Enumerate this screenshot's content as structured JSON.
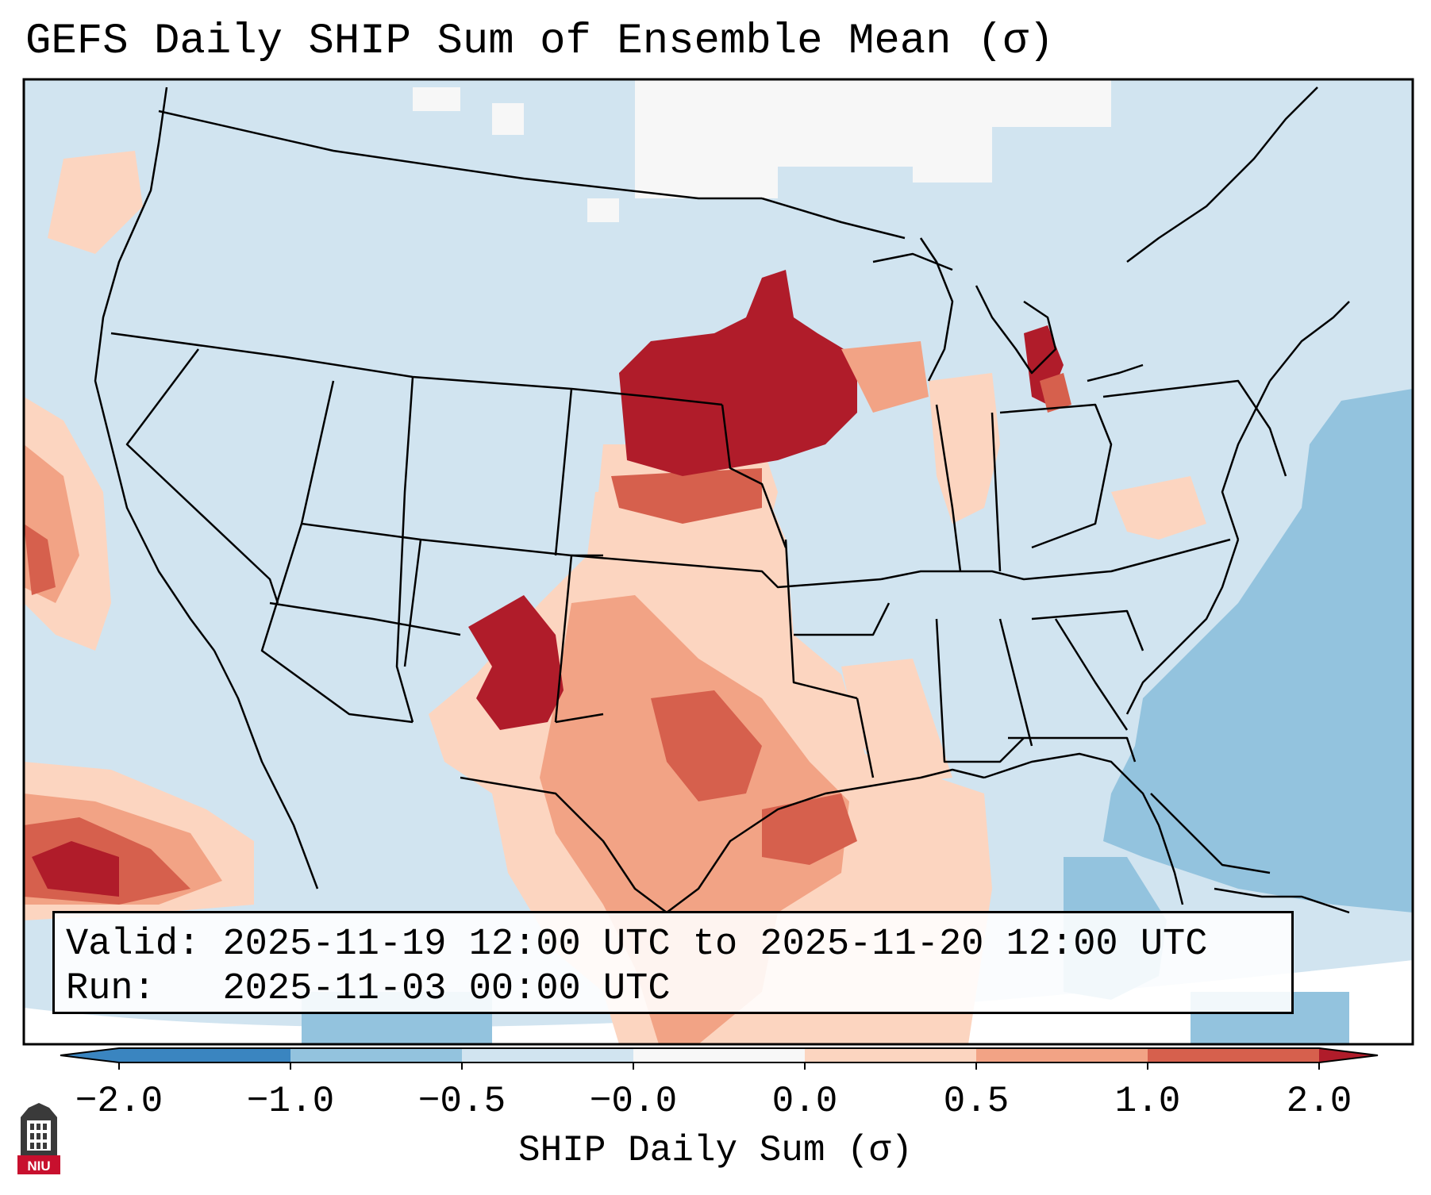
{
  "title": "GEFS Daily SHIP Sum of Ensemble Mean (σ)",
  "info": {
    "valid_label": "Valid:",
    "valid_value": "2025-11-19 12:00 UTC to 2025-11-20 12:00 UTC",
    "run_label": "Run:",
    "run_value": "2025-11-03 00:00 UTC"
  },
  "colorbar": {
    "label": "SHIP Daily Sum (σ)",
    "ticks": [
      "−2.0",
      "−1.0",
      "−0.5",
      "−0.0",
      "0.0",
      "0.5",
      "1.0",
      "2.0"
    ],
    "colors": [
      "#3a85c0",
      "#93c3de",
      "#d1e4f0",
      "#f7f7f7",
      "#fcd5c0",
      "#f2a385",
      "#d6604d",
      "#b01c2a"
    ],
    "extend": "both"
  },
  "logo": {
    "text": "NIU",
    "name": "Northern Illinois University"
  },
  "map": {
    "extent": "CONUS",
    "projection": "Lambert Conformal",
    "background_level": "−0.5 to −0.0",
    "regions": [
      {
        "name": "Upper Midwest (Nebraska, Iowa, southern Minnesota)",
        "category": "above 1.0"
      },
      {
        "name": "Michigan lower peninsula (east)",
        "category": "above 1.0"
      },
      {
        "name": "Eastern New Mexico",
        "category": "above 1.0"
      },
      {
        "name": "Texas",
        "category": "0.5 to 1.0"
      },
      {
        "name": "Western Gulf of Mexico",
        "category": "0.5 to 1.0"
      },
      {
        "name": "Lower Mississippi Valley",
        "category": "0.0 to 0.5"
      },
      {
        "name": "Eastern Pacific off California",
        "category": "above 1.0"
      },
      {
        "name": "Western Atlantic",
        "category": "−1.0 to −0.5"
      },
      {
        "name": "Southern Canada",
        "category": "−0.0 to 0.0"
      }
    ]
  }
}
